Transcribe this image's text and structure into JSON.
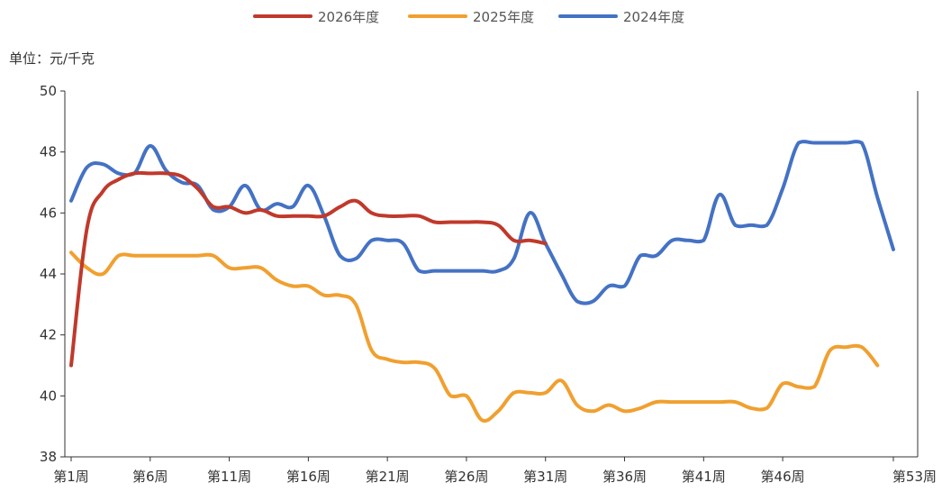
{
  "chart_data": {
    "type": "line",
    "unit_label": "单位：元/千克",
    "x_tick_labels": [
      "第1周",
      "第6周",
      "第11周",
      "第16周",
      "第21周",
      "第26周",
      "第31周",
      "第36周",
      "第41周",
      "第46周",
      "第53周"
    ],
    "x_tick_weeks": [
      1,
      6,
      11,
      16,
      21,
      26,
      31,
      36,
      41,
      46,
      53
    ],
    "xlim": [
      1,
      53
    ],
    "ylim": [
      38,
      50
    ],
    "y_ticks": [
      38,
      40,
      42,
      44,
      46,
      48,
      50
    ],
    "legend_position": "top-center",
    "series": [
      {
        "name": "2026年度",
        "color": "#c0392b",
        "points": [
          [
            1,
            41.0
          ],
          [
            2,
            45.5
          ],
          [
            3,
            46.7
          ],
          [
            4,
            47.1
          ],
          [
            5,
            47.3
          ],
          [
            6,
            47.3
          ],
          [
            7,
            47.3
          ],
          [
            8,
            47.2
          ],
          [
            9,
            46.8
          ],
          [
            10,
            46.2
          ],
          [
            11,
            46.2
          ],
          [
            12,
            46.0
          ],
          [
            13,
            46.1
          ],
          [
            14,
            45.9
          ],
          [
            15,
            45.9
          ],
          [
            16,
            45.9
          ],
          [
            17,
            45.9
          ],
          [
            18,
            46.2
          ],
          [
            19,
            46.4
          ],
          [
            20,
            46.0
          ],
          [
            21,
            45.9
          ],
          [
            22,
            45.9
          ],
          [
            23,
            45.9
          ],
          [
            24,
            45.7
          ],
          [
            25,
            45.7
          ],
          [
            26,
            45.7
          ],
          [
            27,
            45.7
          ],
          [
            28,
            45.6
          ],
          [
            29,
            45.1
          ],
          [
            30,
            45.1
          ],
          [
            31,
            45.0
          ]
        ]
      },
      {
        "name": "2025年度",
        "color": "#f0a030",
        "points": [
          [
            1,
            44.7
          ],
          [
            2,
            44.2
          ],
          [
            3,
            44.0
          ],
          [
            4,
            44.6
          ],
          [
            5,
            44.6
          ],
          [
            6,
            44.6
          ],
          [
            7,
            44.6
          ],
          [
            8,
            44.6
          ],
          [
            9,
            44.6
          ],
          [
            10,
            44.6
          ],
          [
            11,
            44.2
          ],
          [
            12,
            44.2
          ],
          [
            13,
            44.2
          ],
          [
            14,
            43.8
          ],
          [
            15,
            43.6
          ],
          [
            16,
            43.6
          ],
          [
            17,
            43.3
          ],
          [
            18,
            43.3
          ],
          [
            19,
            43.0
          ],
          [
            20,
            41.5
          ],
          [
            21,
            41.2
          ],
          [
            22,
            41.1
          ],
          [
            23,
            41.1
          ],
          [
            24,
            40.9
          ],
          [
            25,
            40.0
          ],
          [
            26,
            40.0
          ],
          [
            27,
            39.2
          ],
          [
            28,
            39.5
          ],
          [
            29,
            40.1
          ],
          [
            30,
            40.1
          ],
          [
            31,
            40.1
          ],
          [
            32,
            40.5
          ],
          [
            33,
            39.7
          ],
          [
            34,
            39.5
          ],
          [
            35,
            39.7
          ],
          [
            36,
            39.5
          ],
          [
            37,
            39.6
          ],
          [
            38,
            39.8
          ],
          [
            39,
            39.8
          ],
          [
            40,
            39.8
          ],
          [
            41,
            39.8
          ],
          [
            42,
            39.8
          ],
          [
            43,
            39.8
          ],
          [
            44,
            39.6
          ],
          [
            45,
            39.6
          ],
          [
            46,
            40.4
          ],
          [
            47,
            40.3
          ],
          [
            48,
            40.3
          ],
          [
            49,
            41.5
          ],
          [
            50,
            41.6
          ],
          [
            51,
            41.6
          ],
          [
            52,
            41.0
          ]
        ]
      },
      {
        "name": "2024年度",
        "color": "#4472c4",
        "points": [
          [
            1,
            46.4
          ],
          [
            2,
            47.5
          ],
          [
            3,
            47.6
          ],
          [
            4,
            47.3
          ],
          [
            5,
            47.3
          ],
          [
            6,
            48.2
          ],
          [
            7,
            47.4
          ],
          [
            8,
            47.0
          ],
          [
            9,
            46.9
          ],
          [
            10,
            46.1
          ],
          [
            11,
            46.2
          ],
          [
            12,
            46.9
          ],
          [
            13,
            46.1
          ],
          [
            14,
            46.3
          ],
          [
            15,
            46.2
          ],
          [
            16,
            46.9
          ],
          [
            17,
            45.9
          ],
          [
            18,
            44.6
          ],
          [
            19,
            44.5
          ],
          [
            20,
            45.1
          ],
          [
            21,
            45.1
          ],
          [
            22,
            45.0
          ],
          [
            23,
            44.1
          ],
          [
            24,
            44.1
          ],
          [
            25,
            44.1
          ],
          [
            26,
            44.1
          ],
          [
            27,
            44.1
          ],
          [
            28,
            44.1
          ],
          [
            29,
            44.5
          ],
          [
            30,
            46.0
          ],
          [
            31,
            45.0
          ],
          [
            32,
            44.0
          ],
          [
            33,
            43.1
          ],
          [
            34,
            43.1
          ],
          [
            35,
            43.6
          ],
          [
            36,
            43.6
          ],
          [
            37,
            44.6
          ],
          [
            38,
            44.6
          ],
          [
            39,
            45.1
          ],
          [
            40,
            45.1
          ],
          [
            41,
            45.1
          ],
          [
            42,
            46.6
          ],
          [
            43,
            45.6
          ],
          [
            44,
            45.6
          ],
          [
            45,
            45.6
          ],
          [
            46,
            46.8
          ],
          [
            47,
            48.3
          ],
          [
            48,
            48.3
          ],
          [
            49,
            48.3
          ],
          [
            50,
            48.3
          ],
          [
            51,
            48.3
          ],
          [
            52,
            46.5
          ],
          [
            53,
            44.8
          ]
        ]
      }
    ]
  }
}
